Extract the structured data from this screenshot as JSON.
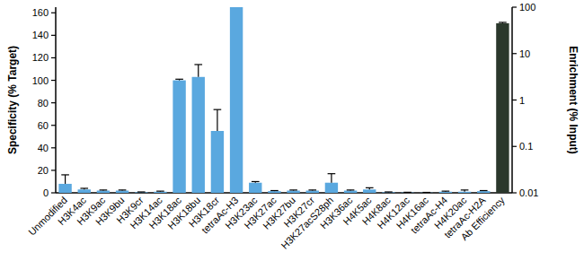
{
  "chart_data": {
    "type": "bar",
    "ylabel": "Specificity (% Target)",
    "y2label": "Enrichment (% Input)",
    "categories": [
      "Unmodified",
      "H3K4ac",
      "H3K9ac",
      "H3K9bu",
      "H3K9cr",
      "H3K14ac",
      "H3K18ac",
      "H3K18bu",
      "H3K18cr",
      "tetraAc-H3",
      "H3K23ac",
      "H3K27ac",
      "H3K27bu",
      "H3K27cr",
      "H3K27acS28ph",
      "H3K36ac",
      "H4K5ac",
      "H4K8ac",
      "H4K12ac",
      "H4K16ac",
      "tetraAc-H4",
      "H4K20ac",
      "tetraAc-H2A",
      "Ab Efficiency"
    ],
    "series": [
      {
        "color": "#5aa8df",
        "values": [
          8,
          3,
          2,
          2,
          0.5,
          1,
          100,
          103,
          55,
          165,
          9,
          1.5,
          2,
          2,
          9,
          2,
          3,
          0.5,
          0.3,
          0.2,
          1,
          1,
          1.5,
          null
        ],
        "errors": [
          8,
          1,
          0.5,
          0.5,
          0.3,
          0.5,
          1,
          11,
          19,
          0,
          1,
          0.5,
          0.5,
          0.5,
          8,
          0.5,
          1.5,
          0.3,
          0.2,
          0.2,
          0.5,
          1.5,
          0.5,
          null
        ]
      },
      {
        "color": "#2b382c",
        "axis": "y2",
        "values": [
          null,
          null,
          null,
          null,
          null,
          null,
          null,
          null,
          null,
          null,
          null,
          null,
          null,
          null,
          null,
          null,
          null,
          null,
          null,
          null,
          null,
          null,
          null,
          45
        ],
        "errors": [
          null,
          null,
          null,
          null,
          null,
          null,
          null,
          null,
          null,
          null,
          null,
          null,
          null,
          null,
          null,
          null,
          null,
          null,
          null,
          null,
          null,
          null,
          null,
          2
        ]
      }
    ],
    "ylim": [
      0,
      165
    ],
    "yticks": [
      0,
      20,
      40,
      60,
      80,
      100,
      120,
      140,
      160
    ],
    "y2lim": [
      0.01,
      100
    ],
    "y2ticks": [
      0.01,
      0.1,
      1,
      10,
      100
    ],
    "log": "y2",
    "grid": false
  }
}
